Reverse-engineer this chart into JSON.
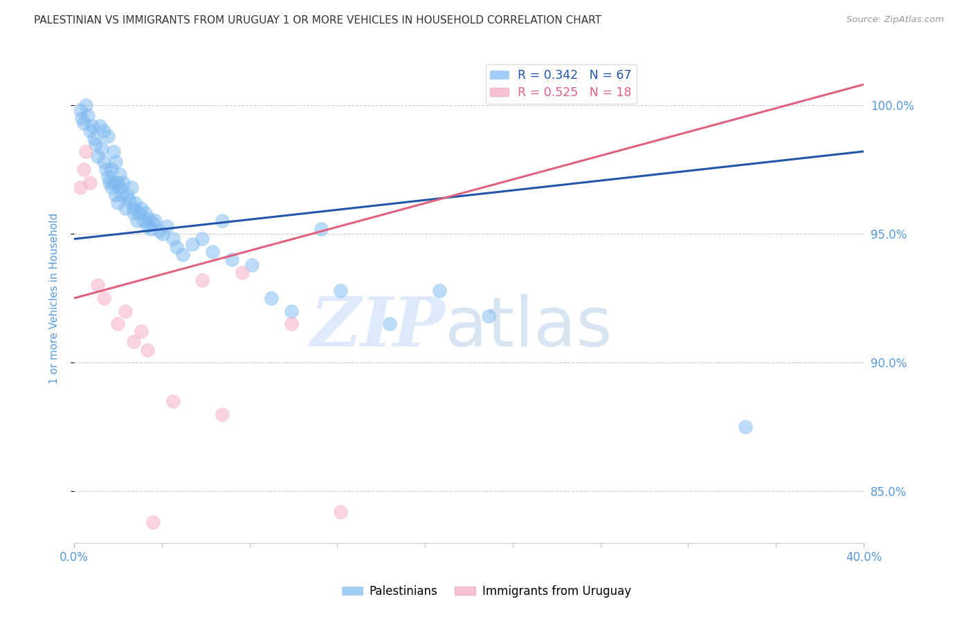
{
  "title": "PALESTINIAN VS IMMIGRANTS FROM URUGUAY 1 OR MORE VEHICLES IN HOUSEHOLD CORRELATION CHART",
  "source": "Source: ZipAtlas.com",
  "ylabel": "1 or more Vehicles in Household",
  "xlim": [
    0.0,
    40.0
  ],
  "ylim": [
    83.0,
    102.0
  ],
  "yticks": [
    85.0,
    90.0,
    95.0,
    100.0
  ],
  "xtick_minor": [
    0.0,
    4.444,
    8.889,
    13.333,
    17.778,
    22.222,
    26.667,
    31.111,
    35.556,
    40.0
  ],
  "xtick_labels_pos": [
    0.0,
    40.0
  ],
  "xtick_labels_val": [
    "0.0%",
    "40.0%"
  ],
  "blue_R": 0.342,
  "blue_N": 67,
  "pink_R": 0.525,
  "pink_N": 18,
  "blue_color": "#7bb8f0",
  "pink_color": "#f5a8c0",
  "blue_line_color": "#2255aa",
  "pink_line_color": "#e06080",
  "blue_label": "Palestinians",
  "pink_label": "Immigrants from Uruguay",
  "watermark_zip": "ZIP",
  "watermark_atlas": "atlas",
  "blue_line_x": [
    0.0,
    40.0
  ],
  "blue_line_y": [
    94.8,
    98.2
  ],
  "pink_line_x": [
    0.0,
    40.0
  ],
  "pink_line_y": [
    92.5,
    100.8
  ],
  "blue_x": [
    0.3,
    0.4,
    0.5,
    0.6,
    0.7,
    0.8,
    0.9,
    1.0,
    1.1,
    1.2,
    1.3,
    1.4,
    1.5,
    1.5,
    1.6,
    1.7,
    1.7,
    1.8,
    1.9,
    1.9,
    2.0,
    2.0,
    2.1,
    2.1,
    2.2,
    2.2,
    2.3,
    2.3,
    2.4,
    2.5,
    2.6,
    2.7,
    2.8,
    2.9,
    3.0,
    3.0,
    3.1,
    3.2,
    3.3,
    3.4,
    3.5,
    3.6,
    3.7,
    3.8,
    3.9,
    4.0,
    4.1,
    4.3,
    4.5,
    4.7,
    5.0,
    5.2,
    5.5,
    6.0,
    6.5,
    7.0,
    7.5,
    8.0,
    9.0,
    10.0,
    11.0,
    12.5,
    13.5,
    16.0,
    18.5,
    21.0,
    34.0
  ],
  "blue_y": [
    99.8,
    99.5,
    99.3,
    100.0,
    99.6,
    99.0,
    99.2,
    98.7,
    98.5,
    98.0,
    99.2,
    98.3,
    99.0,
    97.8,
    97.5,
    97.2,
    98.8,
    97.0,
    96.8,
    97.5,
    97.0,
    98.2,
    96.5,
    97.8,
    96.2,
    97.0,
    96.8,
    97.3,
    96.5,
    97.0,
    96.0,
    96.5,
    96.3,
    96.8,
    96.0,
    95.8,
    96.2,
    95.5,
    95.8,
    96.0,
    95.5,
    95.8,
    95.3,
    95.6,
    95.2,
    95.4,
    95.5,
    95.1,
    95.0,
    95.3,
    94.8,
    94.5,
    94.2,
    94.6,
    94.8,
    94.3,
    95.5,
    94.0,
    93.8,
    92.5,
    92.0,
    95.2,
    92.8,
    91.5,
    92.8,
    91.8,
    87.5
  ],
  "pink_x": [
    0.3,
    0.5,
    0.6,
    0.8,
    1.2,
    1.5,
    2.2,
    2.6,
    3.0,
    3.4,
    3.7,
    4.0,
    5.0,
    6.5,
    7.5,
    8.5,
    11.0,
    13.5
  ],
  "pink_y": [
    96.8,
    97.5,
    98.2,
    97.0,
    93.0,
    92.5,
    91.5,
    92.0,
    90.8,
    91.2,
    90.5,
    83.8,
    88.5,
    93.2,
    88.0,
    93.5,
    91.5,
    84.2
  ],
  "bg_color": "#ffffff",
  "grid_color": "#cccccc",
  "title_color": "#333333",
  "tick_label_color": "#5599dd",
  "ylabel_color": "#5599dd"
}
